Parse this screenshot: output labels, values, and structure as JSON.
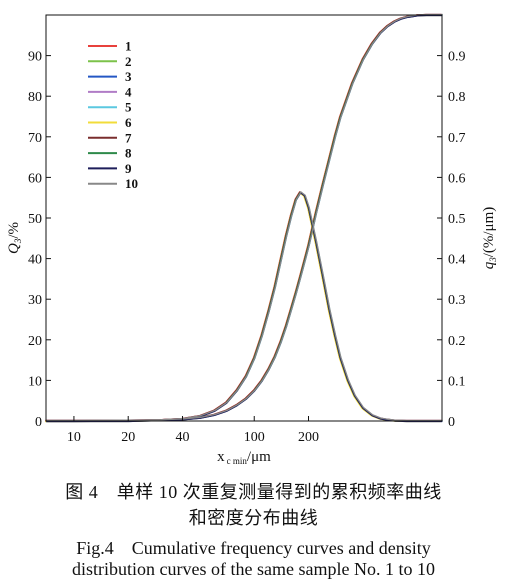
{
  "chart_data": {
    "type": "line",
    "xscale": "log",
    "x_ticks": [
      10,
      20,
      40,
      100,
      200
    ],
    "xlim": [
      7,
      1100
    ],
    "xlabel_main": "x",
    "xlabel_sub": "c min",
    "xlabel_unit": "/μm",
    "left_axis": {
      "label_main": "Q",
      "label_sub": "3",
      "label_unit": "/%",
      "ylim": [
        0,
        100
      ],
      "ticks": [
        0,
        10,
        20,
        30,
        40,
        50,
        60,
        70,
        80,
        90
      ]
    },
    "right_axis": {
      "label_main": "q",
      "label_sub": "3",
      "label_unit": "/(%/μm)",
      "ylim": [
        0,
        1
      ],
      "ticks": [
        "0",
        "0.1",
        "0.2",
        "0.3",
        "0.4",
        "0.5",
        "0.6",
        "0.7",
        "0.8",
        "0.9"
      ]
    },
    "legend_position": "top-left",
    "series": [
      {
        "name": "1",
        "color": "#e8413c"
      },
      {
        "name": "2",
        "color": "#7cc24a"
      },
      {
        "name": "3",
        "color": "#2457c4"
      },
      {
        "name": "4",
        "color": "#b07cc6"
      },
      {
        "name": "5",
        "color": "#5bc8e0"
      },
      {
        "name": "6",
        "color": "#f2dc3a"
      },
      {
        "name": "7",
        "color": "#7a2e2e"
      },
      {
        "name": "8",
        "color": "#2e8a4a"
      },
      {
        "name": "9",
        "color": "#1e1e5a"
      },
      {
        "name": "10",
        "color": "#888888"
      }
    ],
    "cumulative_Q3_percent": {
      "x": [
        7,
        10,
        20,
        30,
        40,
        50,
        60,
        70,
        80,
        90,
        100,
        110,
        120,
        130,
        140,
        150,
        160,
        170,
        180,
        190,
        200,
        220,
        240,
        260,
        280,
        300,
        350,
        400,
        450,
        500,
        550,
        600,
        650,
        700,
        750,
        800,
        900,
        1000,
        1100
      ],
      "y": [
        0,
        0,
        0.1,
        0.2,
        0.4,
        0.8,
        1.5,
        2.5,
        3.9,
        5.5,
        7.5,
        9.9,
        12.7,
        15.8,
        19.4,
        23.3,
        27.5,
        31.5,
        35.5,
        39.4,
        43.2,
        51.3,
        58.2,
        64.3,
        70.0,
        74.8,
        83.2,
        89.0,
        92.9,
        95.6,
        97.3,
        98.4,
        99.1,
        99.5,
        99.7,
        99.9,
        100,
        100,
        100
      ]
    },
    "density_q3": {
      "x": [
        7,
        10,
        20,
        30,
        40,
        50,
        60,
        70,
        80,
        90,
        100,
        110,
        120,
        130,
        140,
        150,
        160,
        170,
        180,
        190,
        200,
        220,
        240,
        260,
        280,
        300,
        330,
        360,
        400,
        450,
        500,
        550,
        600,
        700,
        800,
        900,
        1000,
        1100
      ],
      "y": [
        0,
        0,
        0,
        0.002,
        0.005,
        0.012,
        0.025,
        0.045,
        0.075,
        0.11,
        0.155,
        0.21,
        0.27,
        0.33,
        0.395,
        0.455,
        0.505,
        0.545,
        0.563,
        0.555,
        0.525,
        0.44,
        0.355,
        0.275,
        0.21,
        0.155,
        0.1,
        0.062,
        0.032,
        0.014,
        0.006,
        0.003,
        0.001,
        0,
        0,
        0,
        0,
        0
      ]
    }
  },
  "caption": {
    "cn_line1": "图 4　单样 10 次重复测量得到的累积频率曲线",
    "cn_line2": "和密度分布曲线",
    "en_line1": "Fig.4　Cumulative frequency curves and density",
    "en_line2": "distribution curves of the same sample No. 1 to 10"
  }
}
